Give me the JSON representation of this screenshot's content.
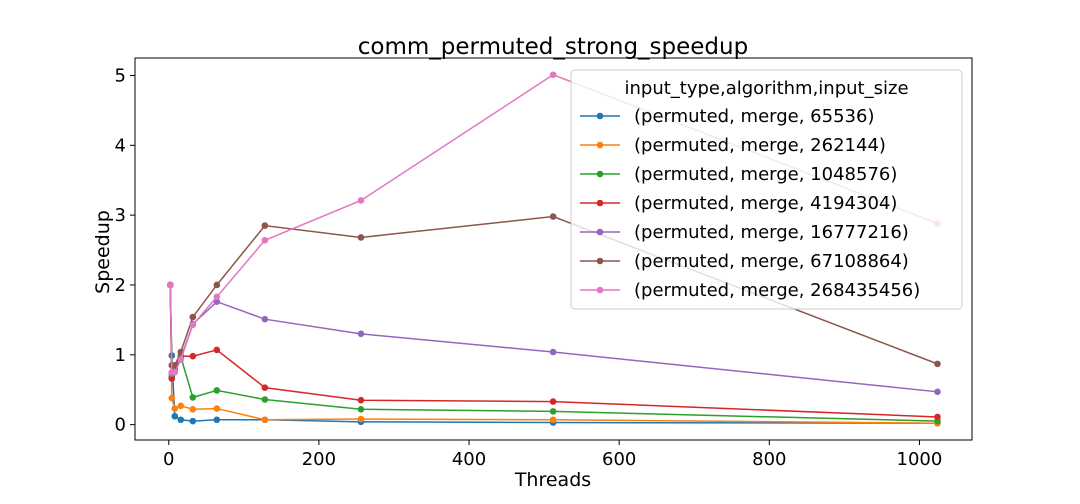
{
  "chart_data": {
    "type": "line",
    "title": "comm_permuted_strong_speedup",
    "xlabel": "Threads",
    "ylabel": "Speedup",
    "xlim": [
      -45,
      1070
    ],
    "ylim": [
      -0.22,
      5.25
    ],
    "xticks": [
      0,
      200,
      400,
      600,
      800,
      1000
    ],
    "yticks": [
      0,
      1,
      2,
      3,
      4,
      5
    ],
    "grid": false,
    "legend": {
      "title": "input_type,algorithm,input_size",
      "placement": "top-right"
    },
    "x": [
      2,
      4,
      8,
      16,
      32,
      64,
      128,
      256,
      512,
      1024
    ],
    "series": [
      {
        "name": "(permuted, merge, 65536)",
        "color": "#1f77b4",
        "values": [
          2.0,
          0.99,
          0.12,
          0.07,
          0.05,
          0.07,
          0.07,
          0.04,
          0.03,
          0.02
        ]
      },
      {
        "name": "(permuted, merge, 262144)",
        "color": "#ff7f0e",
        "values": [
          2.0,
          0.38,
          0.23,
          0.27,
          0.22,
          0.23,
          0.07,
          0.08,
          0.07,
          0.02
        ]
      },
      {
        "name": "(permuted, merge, 1048576)",
        "color": "#2ca02c",
        "values": [
          2.0,
          0.69,
          0.8,
          0.97,
          0.39,
          0.49,
          0.36,
          0.22,
          0.19,
          0.05
        ]
      },
      {
        "name": "(permuted, merge, 4194304)",
        "color": "#d62728",
        "values": [
          2.0,
          0.66,
          0.8,
          0.98,
          0.98,
          1.07,
          0.53,
          0.35,
          0.33,
          0.11
        ]
      },
      {
        "name": "(permuted, merge, 16777216)",
        "color": "#9467bd",
        "values": [
          2.0,
          0.73,
          0.78,
          0.95,
          1.44,
          1.76,
          1.51,
          1.3,
          1.04,
          0.47
        ]
      },
      {
        "name": "(permuted, merge, 67108864)",
        "color": "#8c564b",
        "values": [
          2.0,
          0.85,
          0.85,
          1.04,
          1.54,
          2.0,
          2.85,
          2.68,
          2.98,
          0.87
        ]
      },
      {
        "name": "(permuted, merge, 268435456)",
        "color": "#e377c2",
        "values": [
          2.0,
          0.75,
          0.75,
          0.93,
          1.43,
          1.83,
          2.64,
          3.21,
          5.01,
          2.88
        ]
      }
    ]
  }
}
